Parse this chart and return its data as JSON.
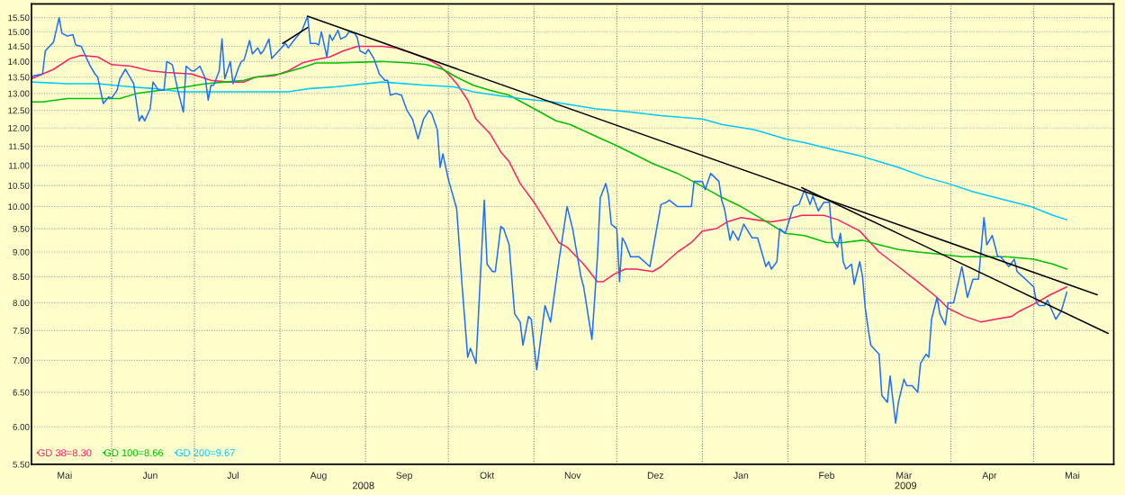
{
  "chart_data": {
    "type": "line",
    "log": true,
    "grid": true,
    "legend": "bottom left",
    "line_style": "solid",
    "marker": "none",
    "xlim": [
      "2008-05-03",
      "2009-05-30"
    ],
    "xticks": [
      {
        "value": "2008-05-15",
        "label": "Mai"
      },
      {
        "value": "2008-06-01",
        "label": null
      },
      {
        "value": "2008-06-15",
        "label": "Jun"
      },
      {
        "value": "2008-07-01",
        "label": null
      },
      {
        "value": "2008-07-15",
        "label": "Jul"
      },
      {
        "value": "2008-08-01",
        "label": null
      },
      {
        "value": "2008-08-15",
        "label": "Aug"
      },
      {
        "value": "2008-09-01",
        "label": null
      },
      {
        "value": "2008-09-15",
        "label": "Sep"
      },
      {
        "value": "2008-10-01",
        "label": null
      },
      {
        "value": "2008-10-15",
        "label": "Okt"
      },
      {
        "value": "2008-11-01",
        "label": null
      },
      {
        "value": "2008-11-15",
        "label": "Nov"
      },
      {
        "value": "2008-12-01",
        "label": null
      },
      {
        "value": "2008-12-15",
        "label": "Dez"
      },
      {
        "value": "2009-01-01",
        "label": null
      },
      {
        "value": "2009-01-15",
        "label": "Jan"
      },
      {
        "value": "2009-02-01",
        "label": null
      },
      {
        "value": "2009-02-15",
        "label": "Feb"
      },
      {
        "value": "2009-03-01",
        "label": null
      },
      {
        "value": "2009-03-15",
        "label": "Mär"
      },
      {
        "value": "2009-04-01",
        "label": null
      },
      {
        "value": "2009-04-15",
        "label": "Apr"
      },
      {
        "value": "2009-05-01",
        "label": null
      },
      {
        "value": "2009-05-15",
        "label": "Mai"
      }
    ],
    "ylim": [
      5.5,
      16.0
    ],
    "yticks": [
      {
        "value": 5.5,
        "label": "5.50"
      },
      {
        "value": 6.0,
        "label": "6.00"
      },
      {
        "value": 6.5,
        "label": "6.50"
      },
      {
        "value": 7.0,
        "label": "7.00"
      },
      {
        "value": 7.5,
        "label": "7.50"
      },
      {
        "value": 8.0,
        "label": "8.00"
      },
      {
        "value": 8.5,
        "label": "8.50"
      },
      {
        "value": 9.0,
        "label": "9.00"
      },
      {
        "value": 9.5,
        "label": "9.50"
      },
      {
        "value": 10.0,
        "label": "10.00"
      },
      {
        "value": 10.5,
        "label": "10.50"
      },
      {
        "value": 11.0,
        "label": "11.00"
      },
      {
        "value": 11.5,
        "label": "11.50"
      },
      {
        "value": 12.0,
        "label": "12.00"
      },
      {
        "value": 12.5,
        "label": "12.50"
      },
      {
        "value": 13.0,
        "label": "13.00"
      },
      {
        "value": 13.5,
        "label": "13.50"
      },
      {
        "value": 14.0,
        "label": "14.00"
      },
      {
        "value": 14.5,
        "label": "14.50"
      },
      {
        "value": 15.0,
        "label": "15.00"
      },
      {
        "value": 15.5,
        "label": "15.50"
      }
    ],
    "annotations": [
      "2008",
      "2009"
    ],
    "series": [
      {
        "name": "GD 38=8.30",
        "color": "#ff2266",
        "x": [
          "2008-05-03",
          "2008-05-11",
          "2008-05-17",
          "2008-05-21",
          "2008-05-27",
          "2008-06-01",
          "2008-06-08",
          "2008-06-15",
          "2008-06-21",
          "2008-06-30",
          "2008-07-07",
          "2008-07-13",
          "2008-07-19",
          "2008-07-23",
          "2008-07-30",
          "2008-08-04",
          "2008-08-09",
          "2008-08-13",
          "2008-08-19",
          "2008-08-24",
          "2008-08-29",
          "2008-09-07",
          "2008-09-12",
          "2008-09-17",
          "2008-09-23",
          "2008-09-28",
          "2008-10-01",
          "2008-10-04",
          "2008-10-08",
          "2008-10-11",
          "2008-10-16",
          "2008-10-20",
          "2008-10-23",
          "2008-10-27",
          "2008-11-01",
          "2008-11-05",
          "2008-11-10",
          "2008-11-13",
          "2008-11-19",
          "2008-11-24",
          "2008-11-26",
          "2008-11-30",
          "2008-12-04",
          "2008-12-08",
          "2008-12-14",
          "2008-12-17",
          "2008-12-23",
          "2008-12-28",
          "2009-01-01",
          "2009-01-06",
          "2009-01-10",
          "2009-01-15",
          "2009-01-20",
          "2009-01-26",
          "2009-01-31",
          "2009-02-06",
          "2009-02-14",
          "2009-02-19",
          "2009-02-27",
          "2009-03-06",
          "2009-03-13",
          "2009-03-20",
          "2009-03-27",
          "2009-03-31",
          "2009-04-06",
          "2009-04-12",
          "2009-04-17",
          "2009-04-23",
          "2009-04-26",
          "2009-05-02",
          "2009-05-07",
          "2009-05-13"
        ],
        "values": [
          13.45,
          13.75,
          14.1,
          14.2,
          14.15,
          13.9,
          13.85,
          13.7,
          13.65,
          13.6,
          13.4,
          13.35,
          13.35,
          13.5,
          13.55,
          13.7,
          13.95,
          14.05,
          14.15,
          14.35,
          14.5,
          14.5,
          14.45,
          14.3,
          14.1,
          13.85,
          13.6,
          13.3,
          12.8,
          12.25,
          11.85,
          11.35,
          11.1,
          10.55,
          10.1,
          9.7,
          9.2,
          9.1,
          8.75,
          8.4,
          8.4,
          8.55,
          8.65,
          8.65,
          8.6,
          8.7,
          9.0,
          9.2,
          9.45,
          9.5,
          9.65,
          9.75,
          9.7,
          9.65,
          9.7,
          9.8,
          9.8,
          9.7,
          9.45,
          9.0,
          8.7,
          8.4,
          8.1,
          7.9,
          7.75,
          7.65,
          7.7,
          7.75,
          7.85,
          8.0,
          8.15,
          8.3
        ]
      },
      {
        "name": "GD 100=8.66",
        "color": "#00c000",
        "x": [
          "2008-05-03",
          "2008-05-07",
          "2008-05-16",
          "2008-05-21",
          "2008-05-27",
          "2008-06-04",
          "2008-06-10",
          "2008-06-19",
          "2008-06-28",
          "2008-07-05",
          "2008-07-12",
          "2008-07-19",
          "2008-07-23",
          "2008-08-01",
          "2008-08-09",
          "2008-08-14",
          "2008-08-21",
          "2008-09-07",
          "2008-09-17",
          "2008-09-23",
          "2008-09-29",
          "2008-10-04",
          "2008-10-10",
          "2008-10-16",
          "2008-10-23",
          "2008-11-01",
          "2008-11-09",
          "2008-11-14",
          "2008-11-24",
          "2008-11-30",
          "2008-12-07",
          "2008-12-14",
          "2008-12-23",
          "2008-12-30",
          "2009-01-07",
          "2009-01-15",
          "2009-01-23",
          "2009-01-31",
          "2009-02-07",
          "2009-02-15",
          "2009-02-21",
          "2009-02-28",
          "2009-03-06",
          "2009-03-13",
          "2009-03-20",
          "2009-03-29",
          "2009-04-05",
          "2009-04-12",
          "2009-04-21",
          "2009-05-01",
          "2009-05-08",
          "2009-05-13"
        ],
        "values": [
          12.75,
          12.75,
          12.85,
          12.85,
          12.85,
          12.85,
          13.0,
          13.1,
          13.2,
          13.3,
          13.35,
          13.4,
          13.5,
          13.6,
          13.8,
          13.95,
          13.95,
          14.0,
          13.95,
          13.9,
          13.75,
          13.5,
          13.25,
          13.1,
          12.95,
          12.55,
          12.2,
          12.1,
          11.75,
          11.55,
          11.3,
          11.05,
          10.8,
          10.55,
          10.25,
          10.0,
          9.7,
          9.4,
          9.35,
          9.2,
          9.2,
          9.25,
          9.15,
          9.05,
          9.0,
          8.95,
          8.9,
          8.9,
          8.9,
          8.85,
          8.75,
          8.65
        ]
      },
      {
        "name": "GD 200=9.67",
        "color": "#00c8ff",
        "x": [
          "2008-05-03",
          "2008-05-16",
          "2008-05-27",
          "2008-06-08",
          "2008-06-16",
          "2008-06-26",
          "2008-07-12",
          "2008-07-29",
          "2008-08-04",
          "2008-08-12",
          "2008-08-21",
          "2008-09-07",
          "2008-09-23",
          "2008-10-03",
          "2008-10-10",
          "2008-10-18",
          "2008-10-27",
          "2008-11-08",
          "2008-11-23",
          "2008-12-06",
          "2008-12-17",
          "2009-01-01",
          "2009-01-08",
          "2009-01-20",
          "2009-01-31",
          "2009-02-07",
          "2009-02-18",
          "2009-02-27",
          "2009-03-06",
          "2009-03-13",
          "2009-03-23",
          "2009-03-31",
          "2009-04-09",
          "2009-04-21",
          "2009-04-30",
          "2009-05-08",
          "2009-05-13"
        ],
        "values": [
          13.35,
          13.3,
          13.3,
          13.2,
          13.15,
          13.05,
          13.05,
          13.05,
          13.05,
          13.15,
          13.2,
          13.35,
          13.25,
          13.2,
          13.05,
          12.95,
          12.85,
          12.75,
          12.55,
          12.45,
          12.35,
          12.25,
          12.1,
          11.95,
          11.7,
          11.6,
          11.4,
          11.25,
          11.1,
          10.95,
          10.7,
          10.55,
          10.35,
          10.15,
          10.0,
          9.8,
          9.7
        ]
      },
      {
        "color": "#1e6eff",
        "x": [
          "2008-05-03",
          "2008-05-04",
          "2008-05-07",
          "2008-05-08",
          "2008-05-11",
          "2008-05-13",
          "2008-05-14",
          "2008-05-16",
          "2008-05-18",
          "2008-05-19",
          "2008-05-21",
          "2008-05-24",
          "2008-05-26",
          "2008-05-27",
          "2008-05-29",
          "2008-05-31",
          "2008-06-01",
          "2008-06-03",
          "2008-06-04",
          "2008-06-06",
          "2008-06-09",
          "2008-06-11",
          "2008-06-12",
          "2008-06-13",
          "2008-06-15",
          "2008-06-16",
          "2008-06-18",
          "2008-06-20",
          "2008-06-21",
          "2008-06-23",
          "2008-06-25",
          "2008-06-27",
          "2008-06-28",
          "2008-06-30",
          "2008-07-01",
          "2008-07-03",
          "2008-07-05",
          "2008-07-06",
          "2008-07-07",
          "2008-07-08",
          "2008-07-10",
          "2008-07-11",
          "2008-07-12",
          "2008-07-14",
          "2008-07-15",
          "2008-07-17",
          "2008-07-18",
          "2008-07-19",
          "2008-07-21",
          "2008-07-22",
          "2008-07-24",
          "2008-07-25",
          "2008-07-26",
          "2008-07-28",
          "2008-07-29",
          "2008-07-31",
          "2008-08-03",
          "2008-08-04",
          "2008-08-06",
          "2008-08-09",
          "2008-08-11",
          "2008-08-12",
          "2008-08-14",
          "2008-08-15",
          "2008-08-16",
          "2008-08-18",
          "2008-08-19",
          "2008-08-20",
          "2008-08-22",
          "2008-08-23",
          "2008-08-25",
          "2008-08-26",
          "2008-08-28",
          "2008-08-29",
          "2008-08-30",
          "2008-09-01",
          "2008-09-02",
          "2008-09-04",
          "2008-09-06",
          "2008-09-08",
          "2008-09-09",
          "2008-09-10",
          "2008-09-12",
          "2008-09-14",
          "2008-09-16",
          "2008-09-18",
          "2008-09-20",
          "2008-09-22",
          "2008-09-24",
          "2008-09-25",
          "2008-09-27",
          "2008-09-28",
          "2008-09-29",
          "2008-10-01",
          "2008-10-04",
          "2008-10-06",
          "2008-10-08",
          "2008-10-09",
          "2008-10-11",
          "2008-10-14",
          "2008-10-15",
          "2008-10-17",
          "2008-10-18",
          "2008-10-20",
          "2008-10-21",
          "2008-10-23",
          "2008-10-25",
          "2008-10-27",
          "2008-10-28",
          "2008-10-30",
          "2008-10-31",
          "2008-11-02",
          "2008-11-05",
          "2008-11-07",
          "2008-11-10",
          "2008-11-13",
          "2008-11-15",
          "2008-11-18",
          "2008-11-19",
          "2008-11-22",
          "2008-11-24",
          "2008-11-25",
          "2008-11-27",
          "2008-11-28",
          "2008-11-29",
          "2008-12-01",
          "2008-12-02",
          "2008-12-03",
          "2008-12-04",
          "2008-12-06",
          "2008-12-09",
          "2008-12-13",
          "2008-12-17",
          "2008-12-19",
          "2008-12-20",
          "2008-12-23",
          "2008-12-28",
          "2008-12-29",
          "2009-01-01",
          "2009-01-02",
          "2009-01-04",
          "2009-01-07",
          "2009-01-08",
          "2009-01-09",
          "2009-01-11",
          "2009-01-12",
          "2009-01-14",
          "2009-01-16",
          "2009-01-19",
          "2009-01-21",
          "2009-01-24",
          "2009-01-25",
          "2009-01-26",
          "2009-01-28",
          "2009-01-29",
          "2009-01-31",
          "2009-02-03",
          "2009-02-05",
          "2009-02-07",
          "2009-02-09",
          "2009-02-10",
          "2009-02-12",
          "2009-02-14",
          "2009-02-16",
          "2009-02-17",
          "2009-02-19",
          "2009-02-20",
          "2009-02-21",
          "2009-02-22",
          "2009-02-24",
          "2009-02-25",
          "2009-02-27",
          "2009-02-28",
          "2009-03-01",
          "2009-03-02",
          "2009-03-03",
          "2009-03-06",
          "2009-03-07",
          "2009-03-09",
          "2009-03-10",
          "2009-03-12",
          "2009-03-13",
          "2009-03-15",
          "2009-03-16",
          "2009-03-18",
          "2009-03-20",
          "2009-03-21",
          "2009-03-23",
          "2009-03-24",
          "2009-03-25",
          "2009-03-27",
          "2009-03-28",
          "2009-03-30",
          "2009-03-31",
          "2009-04-02",
          "2009-04-05",
          "2009-04-07",
          "2009-04-09",
          "2009-04-11",
          "2009-04-13",
          "2009-04-14",
          "2009-04-16",
          "2009-04-18",
          "2009-04-19",
          "2009-04-22",
          "2009-04-24",
          "2009-04-25",
          "2009-04-27",
          "2009-04-29",
          "2009-05-01",
          "2009-05-02",
          "2009-05-03",
          "2009-05-05",
          "2009-05-06",
          "2009-05-09",
          "2009-05-11",
          "2009-05-13"
        ],
        "values": [
          13.5,
          13.55,
          13.6,
          14.35,
          14.65,
          15.5,
          14.95,
          14.85,
          14.9,
          14.55,
          14.5,
          13.9,
          13.6,
          13.5,
          12.7,
          12.9,
          12.85,
          13.1,
          13.45,
          13.75,
          13.3,
          12.2,
          12.35,
          12.2,
          12.55,
          13.35,
          13.1,
          13.1,
          14.0,
          13.9,
          13.1,
          12.45,
          13.85,
          13.7,
          13.7,
          13.85,
          13.45,
          12.8,
          13.25,
          13.25,
          13.7,
          14.75,
          13.45,
          14.0,
          13.3,
          13.8,
          14.0,
          14.05,
          14.7,
          14.25,
          14.45,
          14.25,
          14.35,
          14.75,
          14.1,
          14.3,
          14.6,
          14.45,
          14.7,
          15.05,
          15.55,
          14.6,
          14.6,
          14.55,
          15.0,
          14.15,
          14.9,
          14.7,
          15.05,
          14.75,
          14.85,
          15.0,
          14.95,
          14.8,
          14.35,
          14.25,
          14.4,
          14.1,
          13.6,
          13.4,
          13.4,
          12.95,
          13.0,
          12.95,
          12.5,
          12.25,
          11.7,
          12.25,
          12.5,
          12.4,
          11.95,
          10.95,
          11.3,
          10.65,
          9.95,
          8.3,
          7.05,
          7.2,
          6.95,
          10.15,
          8.75,
          8.6,
          8.6,
          9.55,
          9.5,
          9.15,
          7.8,
          7.65,
          7.25,
          7.75,
          7.7,
          6.85,
          7.95,
          7.65,
          8.8,
          10.0,
          9.5,
          8.5,
          8.3,
          7.35,
          8.9,
          10.2,
          10.55,
          10.25,
          9.6,
          9.5,
          8.4,
          9.3,
          9.2,
          8.9,
          8.9,
          8.7,
          10.05,
          10.1,
          10.15,
          10.0,
          10.0,
          10.6,
          10.6,
          10.4,
          10.8,
          10.6,
          10.15,
          9.95,
          9.25,
          9.45,
          9.25,
          9.6,
          9.3,
          9.3,
          8.7,
          8.8,
          8.65,
          8.8,
          9.5,
          9.4,
          10.0,
          10.05,
          10.4,
          10.05,
          10.25,
          9.9,
          10.1,
          10.1,
          9.3,
          9.1,
          9.4,
          8.8,
          8.65,
          8.75,
          8.35,
          8.8,
          8.5,
          7.9,
          7.55,
          7.25,
          7.1,
          6.45,
          6.35,
          6.75,
          6.05,
          6.35,
          6.7,
          6.6,
          6.6,
          6.5,
          6.95,
          7.1,
          7.05,
          7.7,
          8.1,
          7.8,
          7.6,
          8.0,
          8.0,
          8.7,
          8.1,
          8.45,
          8.45,
          9.75,
          9.15,
          9.35,
          8.9,
          8.9,
          8.7,
          8.85,
          8.6,
          8.5,
          8.4,
          8.3,
          8.0,
          7.95,
          7.95,
          8.05,
          7.7,
          7.85,
          8.2
        ]
      },
      {
        "color": "#000000",
        "x": [
          "2008-08-02",
          "2008-08-11"
        ],
        "values": [
          14.6,
          15.15
        ]
      },
      {
        "color": "#000000",
        "x": [
          "2008-08-11",
          "2009-05-24"
        ],
        "values": [
          15.55,
          8.15
        ]
      },
      {
        "color": "#000000",
        "x": [
          "2009-02-06",
          "2009-05-28"
        ],
        "values": [
          10.45,
          7.45
        ]
      }
    ]
  }
}
